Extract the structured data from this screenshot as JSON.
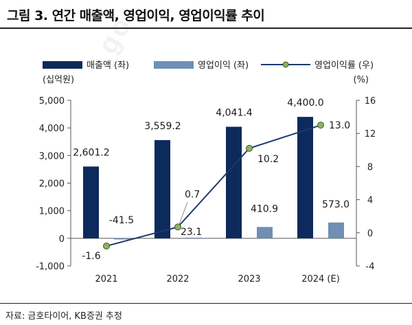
{
  "title": "그림 3. 연간 매출액, 영업이익, 영업이익률 추이",
  "source": "자료: 금호타이어, KB증권 추정",
  "watermark": "go",
  "colors": {
    "revenue": "#0d2a5c",
    "op_profit": "#6f8fb5",
    "margin_line": "#1c3a6e",
    "marker": "#8db35a"
  },
  "chart_data": {
    "type": "bar",
    "categories": [
      "2021",
      "2022",
      "2023",
      "2024 (E)"
    ],
    "series": [
      {
        "name": "매출액 (좌)",
        "kind": "bar",
        "axis": "left",
        "values": [
          2601.2,
          3559.2,
          4041.4,
          4400.0
        ],
        "labels": [
          "2,601.2",
          "3,559.2",
          "4,041.4",
          "4,400.0"
        ]
      },
      {
        "name": "영업이익 (좌)",
        "kind": "bar",
        "axis": "left",
        "values": [
          -41.5,
          23.1,
          410.9,
          573.0
        ],
        "labels": [
          "-41.5",
          "23.1",
          "410.9",
          "573.0"
        ]
      },
      {
        "name": "영업이익률 (우)",
        "kind": "line",
        "axis": "right",
        "values": [
          -1.6,
          0.7,
          10.2,
          13.0
        ],
        "labels": [
          "-1.6",
          "0.7",
          "10.2",
          "13.0"
        ]
      }
    ],
    "left_axis": {
      "unit": "(십억원)",
      "ylim": [
        -1000,
        5000
      ],
      "ticks": [
        -1000,
        0,
        1000,
        2000,
        3000,
        4000,
        5000
      ],
      "tick_labels": [
        "-1,000",
        "0",
        "1,000",
        "2,000",
        "3,000",
        "4,000",
        "5,000"
      ]
    },
    "right_axis": {
      "unit": "(%)",
      "ylim": [
        -4,
        16
      ],
      "ticks": [
        -4,
        0,
        4,
        8,
        12,
        16
      ],
      "tick_labels": [
        "-4",
        "0",
        "4",
        "8",
        "12",
        "16"
      ]
    },
    "legend_position": "top",
    "grid": false
  }
}
